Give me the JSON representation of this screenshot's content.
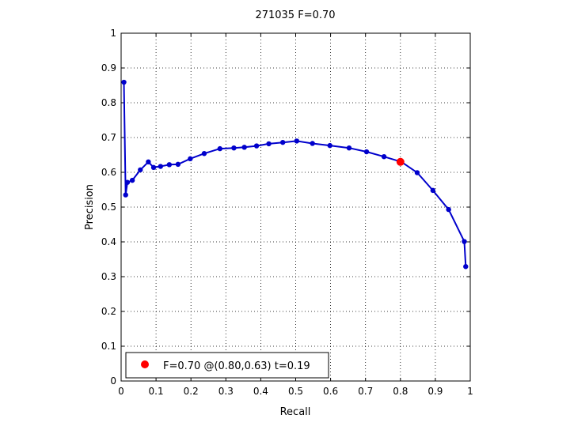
{
  "chart_data": {
    "type": "line",
    "title": "271035 F=0.70",
    "xlabel": "Recall",
    "ylabel": "Precision",
    "xlim": [
      0,
      1
    ],
    "ylim": [
      0,
      1
    ],
    "grid": true,
    "x_ticks": [
      "0",
      "0.1",
      "0.2",
      "0.3",
      "0.4",
      "0.5",
      "0.6",
      "0.7",
      "0.8",
      "0.9",
      "1"
    ],
    "y_ticks": [
      "0",
      "0.1",
      "0.2",
      "0.3",
      "0.4",
      "0.5",
      "0.6",
      "0.7",
      "0.8",
      "0.9",
      "1"
    ],
    "series": [
      {
        "color": "#0000cc",
        "points": [
          [
            0.008,
            0.859
          ],
          [
            0.013,
            0.535
          ],
          [
            0.018,
            0.571
          ],
          [
            0.032,
            0.577
          ],
          [
            0.055,
            0.607
          ],
          [
            0.078,
            0.63
          ],
          [
            0.093,
            0.614
          ],
          [
            0.113,
            0.617
          ],
          [
            0.138,
            0.622
          ],
          [
            0.163,
            0.623
          ],
          [
            0.198,
            0.639
          ],
          [
            0.238,
            0.654
          ],
          [
            0.283,
            0.668
          ],
          [
            0.323,
            0.67
          ],
          [
            0.353,
            0.672
          ],
          [
            0.388,
            0.676
          ],
          [
            0.423,
            0.682
          ],
          [
            0.463,
            0.686
          ],
          [
            0.503,
            0.69
          ],
          [
            0.548,
            0.683
          ],
          [
            0.598,
            0.677
          ],
          [
            0.653,
            0.67
          ],
          [
            0.703,
            0.659
          ],
          [
            0.753,
            0.645
          ],
          [
            0.803,
            0.63
          ],
          [
            0.848,
            0.599
          ],
          [
            0.893,
            0.548
          ],
          [
            0.938,
            0.493
          ],
          [
            0.983,
            0.401
          ],
          [
            0.987,
            0.329
          ]
        ]
      }
    ],
    "best_point": {
      "recall": 0.8,
      "precision": 0.63,
      "color": "#ff0000"
    },
    "legend": {
      "position": "bottom-left",
      "label": "F=0.70 @(0.80,0.63) t=0.19"
    }
  }
}
